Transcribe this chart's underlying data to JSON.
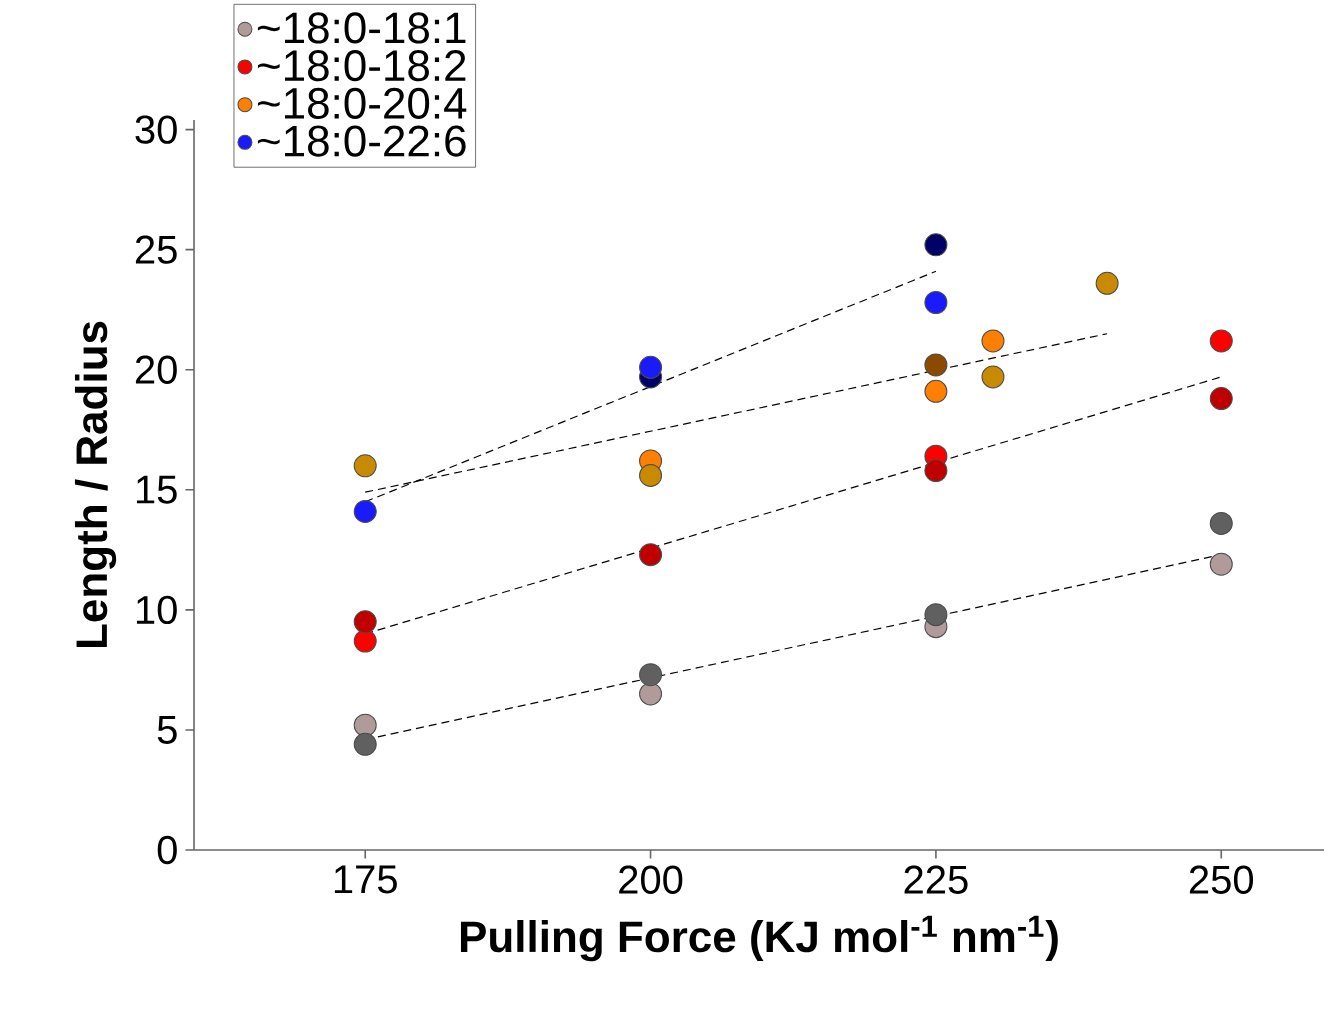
{
  "chart_data": {
    "type": "scatter",
    "xlabel": "Pulling Force (KJ mol$^{-1}$ nm$^{-1}$)",
    "ylabel": "Length / Radius",
    "xlim": [
      160,
      259
    ],
    "xticks": [
      175,
      200,
      225,
      250
    ],
    "ylim": [
      0,
      30.4
    ],
    "yticks": [
      0,
      5,
      10,
      15,
      20,
      25,
      30
    ],
    "marker": "circle",
    "legend": "top left",
    "grid": false,
    "series": [
      {
        "type": "line",
        "marker": "none",
        "color": "#000000",
        "line_style": "dashed",
        "x": [
          175,
          250
        ],
        "values": [
          4.6,
          12.3
        ]
      },
      {
        "type": "line",
        "marker": "none",
        "color": "#000000",
        "line_style": "dashed",
        "x": [
          175,
          250
        ],
        "values": [
          9.0,
          19.7
        ]
      },
      {
        "type": "line",
        "marker": "none",
        "color": "#000000",
        "line_style": "dashed",
        "x": [
          175,
          240
        ],
        "values": [
          14.9,
          21.5
        ]
      },
      {
        "type": "line",
        "marker": "none",
        "color": "#000000",
        "line_style": "dashed",
        "x": [
          175,
          225
        ],
        "values": [
          14.5,
          24.1
        ]
      },
      {
        "name": "~18:0-18:1",
        "color": "#b09a9a",
        "x": [
          175,
          200,
          225,
          250
        ],
        "values": [
          5.2,
          6.5,
          9.3,
          11.9
        ]
      },
      {
        "color": "#606060",
        "x": [
          175,
          200,
          225,
          250
        ],
        "values": [
          4.4,
          7.3,
          9.8,
          13.6
        ]
      },
      {
        "name": "~18:0-18:2",
        "color": "#ff0000",
        "x": [
          175,
          225,
          250
        ],
        "values": [
          8.7,
          16.4,
          21.2
        ]
      },
      {
        "color": "#c00000",
        "x": [
          175,
          200,
          225,
          250
        ],
        "values": [
          9.5,
          12.3,
          15.8,
          18.8
        ]
      },
      {
        "name": "~18:0-20:4",
        "color": "#ff8000",
        "x": [
          200,
          225,
          230
        ],
        "values": [
          16.2,
          19.1,
          21.2
        ]
      },
      {
        "color": "#c88a00",
        "x": [
          175,
          200,
          230,
          240
        ],
        "values": [
          16.0,
          15.6,
          19.7,
          23.6
        ]
      },
      {
        "color": "#8b4a00",
        "x": [
          225
        ],
        "values": [
          20.2
        ]
      },
      {
        "color": "#000066",
        "x": [
          200,
          225
        ],
        "values": [
          19.7,
          25.2
        ]
      },
      {
        "name": "~18:0-22:6",
        "color": "#1a1aff",
        "x": [
          175,
          200,
          225
        ],
        "values": [
          14.1,
          20.1,
          22.8
        ]
      }
    ]
  }
}
